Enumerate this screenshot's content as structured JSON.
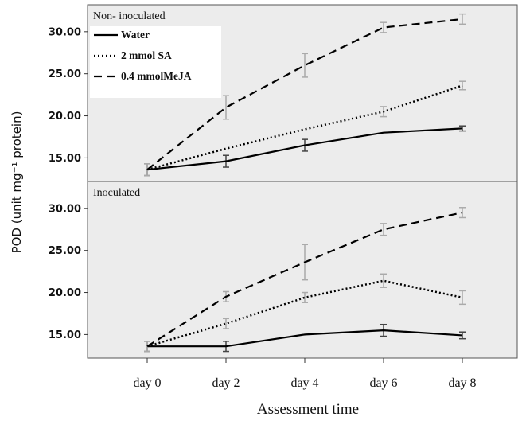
{
  "chart_data": {
    "type": "line",
    "ylabel": "POD (unit mg⁻¹ protein)",
    "xlabel": "Assessment time",
    "categories": [
      "day 0",
      "day 2",
      "day 4",
      "day 6",
      "day 8"
    ],
    "legend": {
      "placement": "top-left",
      "entries": [
        "Water",
        "2 mmol SA",
        "0.4 mmolMeJA"
      ]
    },
    "grid": false,
    "panels": [
      {
        "label": "Non- inoculated",
        "yticks": [
          "15.00",
          "20.00",
          "25.00",
          "30.00"
        ],
        "ylim": [
          12.2,
          33.2
        ],
        "series": [
          {
            "name": "Water",
            "style": "solid",
            "values": [
              13.6,
              14.6,
              16.5,
              18.0,
              18.5
            ],
            "errors": [
              0.7,
              0.7,
              0.7,
              0.0,
              0.3
            ]
          },
          {
            "name": "2 mmol SA",
            "style": "dotted",
            "values": [
              13.6,
              16.1,
              18.4,
              20.5,
              23.6
            ],
            "errors": [
              0.7,
              0.0,
              0.0,
              0.6,
              0.5
            ]
          },
          {
            "name": "0.4 mmolMeJA",
            "style": "dashed",
            "values": [
              13.6,
              21.0,
              26.0,
              30.5,
              31.5
            ],
            "errors": [
              0.7,
              1.4,
              1.4,
              0.6,
              0.6
            ]
          }
        ]
      },
      {
        "label": "Inoculated",
        "yticks": [
          "15.00",
          "20.00",
          "25.00",
          "30.00"
        ],
        "ylim": [
          12.2,
          33.2
        ],
        "series": [
          {
            "name": "Water",
            "style": "solid",
            "values": [
              13.6,
              13.6,
              15.0,
              15.5,
              14.9
            ],
            "errors": [
              0.6,
              0.6,
              0.0,
              0.7,
              0.4
            ]
          },
          {
            "name": "2 mmol SA",
            "style": "dotted",
            "values": [
              13.6,
              16.3,
              19.4,
              21.4,
              19.4
            ],
            "errors": [
              0.6,
              0.6,
              0.6,
              0.8,
              0.8
            ]
          },
          {
            "name": "0.4 mmolMeJA",
            "style": "dashed",
            "values": [
              13.6,
              19.5,
              23.6,
              27.5,
              29.5
            ],
            "errors": [
              0.6,
              0.6,
              2.1,
              0.7,
              0.6
            ]
          }
        ]
      }
    ]
  }
}
